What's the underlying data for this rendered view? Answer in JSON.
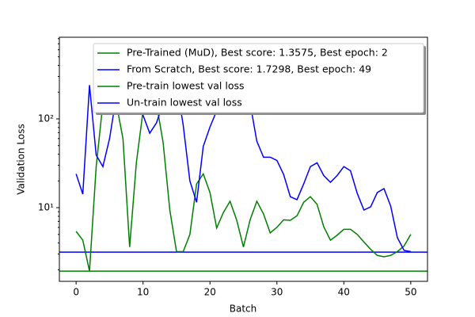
{
  "chart_data": {
    "type": "line",
    "xlabel": "Batch",
    "ylabel": "Validation Loss",
    "x": [
      0,
      1,
      2,
      3,
      4,
      5,
      6,
      7,
      8,
      9,
      10,
      11,
      12,
      13,
      14,
      15,
      16,
      17,
      18,
      19,
      20,
      21,
      22,
      23,
      24,
      25,
      26,
      27,
      28,
      29,
      30,
      31,
      32,
      33,
      34,
      35,
      36,
      37,
      38,
      39,
      40,
      41,
      42,
      43,
      44,
      45,
      46,
      47,
      48,
      49,
      50
    ],
    "series": [
      {
        "name": "Pre-Trained (MuD), Best score: 1.3575, Best epoch: 2",
        "color": "#008000",
        "values": [
          5.4,
          4.3,
          1.93,
          29,
          150,
          300,
          150,
          60,
          3.6,
          32,
          123,
          200,
          150,
          54,
          9.4,
          3.2,
          3.2,
          5,
          18.5,
          24,
          14.8,
          5.9,
          8.8,
          11.8,
          7.2,
          3.6,
          7.3,
          11.8,
          8.5,
          5.2,
          6,
          7.3,
          7.2,
          8.1,
          11.5,
          13.3,
          10.9,
          6.1,
          4.3,
          4.9,
          5.7,
          5.7,
          5,
          4.1,
          3.4,
          2.9,
          2.8,
          2.9,
          3.2,
          3.7,
          5
        ]
      },
      {
        "name": "From Scratch, Best score: 1.7298, Best epoch: 49",
        "color": "#0000ff",
        "values": [
          24,
          14.2,
          240,
          39,
          29,
          60,
          180,
          300,
          250,
          200,
          110,
          69,
          90,
          150,
          300,
          250,
          85,
          20,
          11.5,
          49,
          81,
          123,
          200,
          300,
          300,
          300,
          150,
          56,
          37,
          37,
          34,
          23.7,
          13.3,
          12.3,
          18.5,
          29,
          32,
          23,
          19.3,
          23,
          29,
          26,
          14.5,
          9.4,
          10.2,
          14.8,
          16.4,
          10.4,
          4.6,
          3.3,
          3.2
        ]
      }
    ],
    "reference_lines": [
      {
        "name": "Pre-train lowest val loss",
        "color": "#008000",
        "value": 1.93
      },
      {
        "name": "Un-train lowest val loss",
        "color": "#0000ff",
        "value": 3.16
      }
    ],
    "xlim": [
      -2.5,
      52.5
    ],
    "ylim": [
      1.48,
      830
    ],
    "log_y": true,
    "xticks": [
      0,
      10,
      20,
      30,
      40,
      50
    ],
    "yticks": [
      {
        "value": 10,
        "label": "10¹"
      },
      {
        "value": 100,
        "label": "10²"
      }
    ],
    "legend": "upper right"
  }
}
